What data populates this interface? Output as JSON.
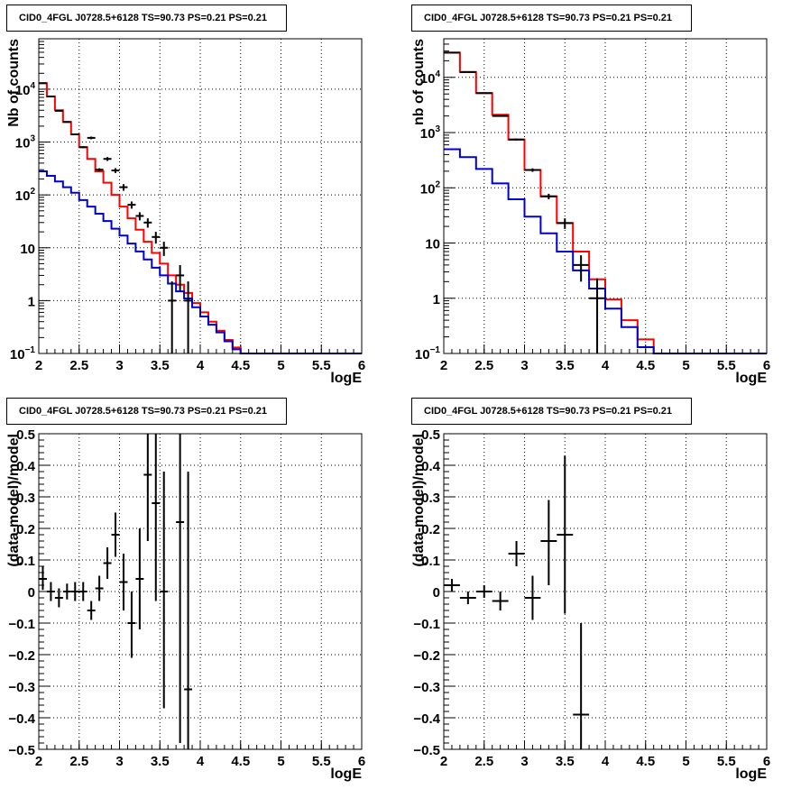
{
  "chart_data": [
    {
      "type": "line",
      "title": "CID0_4FGL J0728.5+6128 TS=90.73 PS=0.21 PS=0.21",
      "xlabel": "logE",
      "ylabel": "Nb of counts",
      "xlim": [
        2,
        6
      ],
      "ylim": [
        0.1,
        90000
      ],
      "yscale": "log",
      "grid": true,
      "xticks": [
        "2",
        "2.5",
        "3",
        "3.5",
        "4",
        "4.5",
        "5",
        "5.5",
        "6"
      ],
      "yticks": [
        {
          "v": 0.1,
          "base": "10",
          "exp": "−1"
        },
        {
          "v": 1,
          "label": "1"
        },
        {
          "v": 10,
          "label": "10"
        },
        {
          "v": 100,
          "base": "10",
          "exp": "2"
        },
        {
          "v": 1000,
          "base": "10",
          "exp": "3"
        },
        {
          "v": 10000,
          "base": "10",
          "exp": "4"
        }
      ],
      "bin_edges": [
        2.0,
        2.1,
        2.2,
        2.3,
        2.4,
        2.5,
        2.6,
        2.7,
        2.8,
        2.9,
        3.0,
        3.1,
        3.2,
        3.3,
        3.4,
        3.5,
        3.6,
        3.7,
        3.8,
        3.9,
        4.0,
        4.1,
        4.2,
        4.3,
        4.4,
        4.5,
        4.6,
        4.7,
        4.8,
        4.9,
        5.0,
        5.1,
        5.2,
        5.3,
        5.4,
        5.5,
        5.6,
        5.7,
        5.8,
        5.9,
        6.0
      ],
      "series": [
        {
          "color": "#ff0000",
          "kind": "step",
          "values": [
            13000,
            7300,
            4000,
            2400,
            1400,
            800,
            480,
            280,
            170,
            100,
            60,
            36,
            22,
            13,
            8,
            5,
            3,
            2,
            1.4,
            0.9,
            0.6,
            0.4,
            0.27,
            0.18,
            0.13,
            0.1,
            0.1,
            0.1,
            0.1,
            0.1,
            0.1,
            0.1,
            0.1,
            0.1,
            0.1,
            0.1,
            0.1,
            0.1,
            0.1,
            0.1
          ]
        },
        {
          "color": "#0000cc",
          "kind": "step",
          "values": [
            280,
            230,
            180,
            140,
            110,
            80,
            60,
            44,
            32,
            23,
            17,
            12,
            8.5,
            6,
            4.2,
            3,
            2.1,
            1.5,
            1.1,
            0.75,
            0.5,
            0.35,
            0.25,
            0.17,
            0.12,
            0.1,
            0.1,
            0.1,
            0.1,
            0.1,
            0.1,
            0.1,
            0.1,
            0.1,
            0.1,
            0.1,
            0.1,
            0.1,
            0.1,
            0.1
          ]
        },
        {
          "color": "#000000",
          "kind": "points",
          "points": [
            {
              "x": 2.05,
              "y": 13000,
              "lo": 12800,
              "hi": 13200
            },
            {
              "x": 2.15,
              "y": 7300,
              "lo": 7200,
              "hi": 7400
            },
            {
              "x": 2.25,
              "y": 3900,
              "lo": 3800,
              "hi": 4000
            },
            {
              "x": 2.35,
              "y": 2400,
              "lo": 2350,
              "hi": 2450
            },
            {
              "x": 2.45,
              "y": 1400,
              "lo": 1360,
              "hi": 1440
            },
            {
              "x": 2.55,
              "y": 800,
              "lo": 770,
              "hi": 830
            },
            {
              "x": 2.65,
              "y": 1200,
              "lo": 1130,
              "hi": 1270
            },
            {
              "x": 2.75,
              "y": 300,
              "lo": 280,
              "hi": 320
            },
            {
              "x": 2.85,
              "y": 480,
              "lo": 440,
              "hi": 520
            },
            {
              "x": 2.95,
              "y": 290,
              "lo": 260,
              "hi": 320
            },
            {
              "x": 3.05,
              "y": 140,
              "lo": 120,
              "hi": 160
            },
            {
              "x": 3.15,
              "y": 65,
              "lo": 55,
              "hi": 75
            },
            {
              "x": 3.25,
              "y": 40,
              "lo": 33,
              "hi": 47
            },
            {
              "x": 3.35,
              "y": 30,
              "lo": 24,
              "hi": 36
            },
            {
              "x": 3.45,
              "y": 16,
              "lo": 12,
              "hi": 20
            },
            {
              "x": 3.55,
              "y": 10,
              "lo": 7,
              "hi": 13
            },
            {
              "x": 3.65,
              "y": 1,
              "lo": 0.1,
              "hi": 2.3
            },
            {
              "x": 3.75,
              "y": 3,
              "lo": 1.5,
              "hi": 4.7
            },
            {
              "x": 3.85,
              "y": 1,
              "lo": 0.1,
              "hi": 2.3
            }
          ]
        }
      ]
    },
    {
      "type": "line",
      "title": "CID0_4FGL J0728.5+6128 TS=90.73 PS=0.21 PS=0.21",
      "xlabel": "logE",
      "ylabel": "nb of counts",
      "xlim": [
        2,
        6
      ],
      "ylim": [
        0.1,
        50000
      ],
      "yscale": "log",
      "grid": true,
      "xticks": [
        "2",
        "2.5",
        "3",
        "3.5",
        "4",
        "4.5",
        "5",
        "5.5",
        "6"
      ],
      "yticks": [
        {
          "v": 0.1,
          "base": "10",
          "exp": "−1"
        },
        {
          "v": 1,
          "label": "1"
        },
        {
          "v": 10,
          "label": "10"
        },
        {
          "v": 100,
          "base": "10",
          "exp": "2"
        },
        {
          "v": 1000,
          "base": "10",
          "exp": "3"
        },
        {
          "v": 10000,
          "base": "10",
          "exp": "4"
        }
      ],
      "bin_edges": [
        2.0,
        2.2,
        2.4,
        2.6,
        2.8,
        3.0,
        3.2,
        3.4,
        3.6,
        3.8,
        4.0,
        4.2,
        4.4,
        4.6,
        4.8,
        5.0,
        5.2,
        5.4,
        5.6,
        5.8,
        6.0
      ],
      "series": [
        {
          "color": "#ff0000",
          "kind": "step",
          "values": [
            28000,
            12500,
            5200,
            2100,
            750,
            210,
            70,
            23,
            7,
            2.2,
            0.95,
            0.4,
            0.18,
            0.1,
            0.1,
            0.1,
            0.1,
            0.1,
            0.1,
            0.1
          ]
        },
        {
          "color": "#0000cc",
          "kind": "step",
          "values": [
            500,
            360,
            220,
            120,
            62,
            30,
            15,
            7,
            3.2,
            1.5,
            0.65,
            0.3,
            0.13,
            0.1,
            0.1,
            0.1,
            0.1,
            0.1,
            0.1,
            0.1
          ]
        },
        {
          "color": "#000000",
          "kind": "points",
          "points": [
            {
              "x": 2.1,
              "y": 28000,
              "lo": 27700,
              "hi": 28300
            },
            {
              "x": 2.3,
              "y": 12500,
              "lo": 12300,
              "hi": 12700
            },
            {
              "x": 2.5,
              "y": 5200,
              "lo": 5100,
              "hi": 5300
            },
            {
              "x": 2.7,
              "y": 2000,
              "lo": 1950,
              "hi": 2050
            },
            {
              "x": 2.9,
              "y": 750,
              "lo": 720,
              "hi": 780
            },
            {
              "x": 3.1,
              "y": 210,
              "lo": 195,
              "hi": 225
            },
            {
              "x": 3.3,
              "y": 70,
              "lo": 62,
              "hi": 78
            },
            {
              "x": 3.5,
              "y": 23,
              "lo": 18,
              "hi": 28
            },
            {
              "x": 3.7,
              "y": 4,
              "lo": 2,
              "hi": 6
            },
            {
              "x": 3.9,
              "y": 1,
              "lo": 0.1,
              "hi": 2.3
            }
          ]
        }
      ]
    },
    {
      "type": "scatter",
      "title": "CID0_4FGL J0728.5+6128 TS=90.73 PS=0.21 PS=0.21",
      "xlabel": "logE",
      "ylabel": "(data-model)/model",
      "xlim": [
        2,
        6
      ],
      "ylim": [
        -0.5,
        0.5
      ],
      "grid": true,
      "xticks": [
        "2",
        "2.5",
        "3",
        "3.5",
        "4",
        "4.5",
        "5",
        "5.5",
        "6"
      ],
      "yticks": [
        "−0.5",
        "−0.4",
        "−0.3",
        "−0.2",
        "−0.1",
        "0",
        "0.1",
        "0.2",
        "0.3",
        "0.4",
        "0.5"
      ],
      "xhalf": 0.05,
      "series": [
        {
          "color": "#000000",
          "points": [
            {
              "x": 2.05,
              "y": 0.04,
              "lo": 0.005,
              "hi": 0.08
            },
            {
              "x": 2.15,
              "y": 0.0,
              "lo": -0.03,
              "hi": 0.03
            },
            {
              "x": 2.25,
              "y": -0.02,
              "lo": -0.05,
              "hi": 0.01
            },
            {
              "x": 2.35,
              "y": 0.0,
              "lo": -0.025,
              "hi": 0.025
            },
            {
              "x": 2.45,
              "y": 0.0,
              "lo": -0.03,
              "hi": 0.03
            },
            {
              "x": 2.55,
              "y": 0.0,
              "lo": -0.03,
              "hi": 0.03
            },
            {
              "x": 2.65,
              "y": -0.06,
              "lo": -0.09,
              "hi": -0.03
            },
            {
              "x": 2.75,
              "y": 0.01,
              "lo": -0.03,
              "hi": 0.05
            },
            {
              "x": 2.85,
              "y": 0.09,
              "lo": 0.04,
              "hi": 0.14
            },
            {
              "x": 2.95,
              "y": 0.18,
              "lo": 0.11,
              "hi": 0.25
            },
            {
              "x": 3.05,
              "y": 0.03,
              "lo": -0.06,
              "hi": 0.12
            },
            {
              "x": 3.15,
              "y": -0.1,
              "lo": -0.21,
              "hi": 0.0
            },
            {
              "x": 3.25,
              "y": 0.04,
              "lo": -0.12,
              "hi": 0.2
            },
            {
              "x": 3.35,
              "y": 0.37,
              "lo": 0.16,
              "hi": 0.5
            },
            {
              "x": 3.45,
              "y": 0.28,
              "lo": -0.03,
              "hi": 0.5
            },
            {
              "x": 3.55,
              "y": 0.0,
              "lo": -0.37,
              "hi": 0.38
            },
            {
              "x": 3.75,
              "y": 0.22,
              "lo": -0.48,
              "hi": 0.5
            },
            {
              "x": 3.85,
              "y": -0.31,
              "lo": -0.5,
              "hi": 0.38
            }
          ]
        }
      ]
    },
    {
      "type": "scatter",
      "title": "CID0_4FGL J0728.5+6128 TS=90.73 PS=0.21 PS=0.21",
      "xlabel": "logE",
      "ylabel": "(data-model)/model",
      "xlim": [
        2,
        6
      ],
      "ylim": [
        -0.5,
        0.5
      ],
      "grid": true,
      "xticks": [
        "2",
        "2.5",
        "3",
        "3.5",
        "4",
        "4.5",
        "5",
        "5.5",
        "6"
      ],
      "yticks": [
        "−0.5",
        "−0.4",
        "−0.3",
        "−0.2",
        "−0.1",
        "0",
        "0.1",
        "0.2",
        "0.3",
        "0.4",
        "0.5"
      ],
      "xhalf": 0.1,
      "series": [
        {
          "color": "#000000",
          "points": [
            {
              "x": 2.1,
              "y": 0.02,
              "lo": -0.0,
              "hi": 0.04
            },
            {
              "x": 2.3,
              "y": -0.02,
              "lo": -0.04,
              "hi": 0.0
            },
            {
              "x": 2.5,
              "y": 0.0,
              "lo": -0.02,
              "hi": 0.02
            },
            {
              "x": 2.7,
              "y": -0.03,
              "lo": -0.06,
              "hi": 0.0
            },
            {
              "x": 2.9,
              "y": 0.12,
              "lo": 0.08,
              "hi": 0.16
            },
            {
              "x": 3.1,
              "y": -0.02,
              "lo": -0.09,
              "hi": 0.05
            },
            {
              "x": 3.3,
              "y": 0.16,
              "lo": 0.02,
              "hi": 0.29
            },
            {
              "x": 3.5,
              "y": 0.18,
              "lo": -0.07,
              "hi": 0.43
            },
            {
              "x": 3.7,
              "y": -0.39,
              "lo": -0.5,
              "hi": -0.1
            }
          ]
        }
      ]
    }
  ]
}
